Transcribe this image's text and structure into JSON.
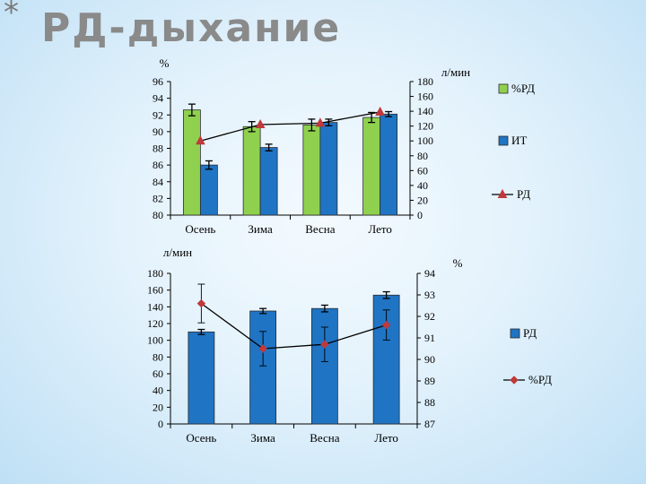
{
  "slide": {
    "bullet": "*",
    "title": "РД-дыхание"
  },
  "chart_data": [
    {
      "type": "bar",
      "categories": [
        "Осень",
        "Зима",
        "Весна",
        "Лето"
      ],
      "left_axis_label": "%",
      "right_axis_label": "л/мин",
      "left_ylim": [
        80,
        96
      ],
      "left_ticks": [
        80,
        82,
        84,
        86,
        88,
        90,
        92,
        94,
        96
      ],
      "right_ylim": [
        0,
        180
      ],
      "right_ticks": [
        0,
        20,
        40,
        60,
        80,
        100,
        120,
        140,
        160,
        180
      ],
      "legend_position": "right",
      "series": [
        {
          "name": "%РД",
          "kind": "bar",
          "axis": "left",
          "color": "#8fd14f",
          "values": [
            92.6,
            90.6,
            90.8,
            91.7
          ],
          "errors": [
            0.7,
            0.6,
            0.7,
            0.6
          ]
        },
        {
          "name": "ИТ",
          "kind": "bar",
          "axis": "left",
          "color": "#1f74c4",
          "values": [
            86.0,
            88.1,
            91.1,
            92.1
          ],
          "errors": [
            0.5,
            0.4,
            0.4,
            0.3
          ]
        },
        {
          "name": "РД",
          "kind": "line",
          "axis": "right",
          "color": "#c0393b",
          "marker": "triangle",
          "values": [
            100,
            122,
            124,
            139
          ]
        }
      ]
    },
    {
      "type": "bar",
      "categories": [
        "Осень",
        "Зима",
        "Весна",
        "Лето"
      ],
      "left_axis_label": "л/мин",
      "right_axis_label": "%",
      "left_ylim": [
        0,
        180
      ],
      "left_ticks": [
        0,
        20,
        40,
        60,
        80,
        100,
        120,
        140,
        160,
        180
      ],
      "right_ylim": [
        87,
        94
      ],
      "right_ticks": [
        87,
        88,
        89,
        90,
        91,
        92,
        93,
        94
      ],
      "legend_position": "right",
      "series": [
        {
          "name": "РД",
          "kind": "bar",
          "axis": "left",
          "color": "#1f74c4",
          "values": [
            110,
            135,
            138,
            154
          ],
          "errors": [
            3,
            3,
            4,
            4
          ]
        },
        {
          "name": "%РД",
          "kind": "line",
          "axis": "right",
          "color": "#c0393b",
          "marker": "diamond",
          "values": [
            92.6,
            90.5,
            90.7,
            91.6
          ],
          "errors": [
            0.9,
            0.8,
            0.8,
            0.7
          ]
        }
      ]
    }
  ]
}
